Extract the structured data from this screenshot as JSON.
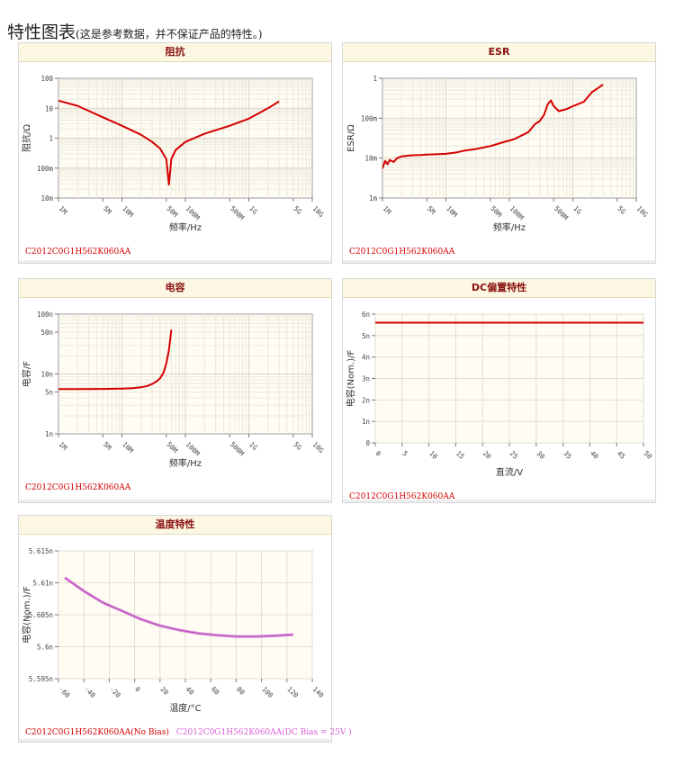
{
  "page": {
    "title": "特性图表",
    "subtitle": "(这是参考数据，并不保证产品的特性。)"
  },
  "chart_data": [
    {
      "id": "impedance",
      "type": "line",
      "title": "阻抗",
      "xlabel": "频率/Hz",
      "ylabel": "阻抗/Ω",
      "xscale": "log",
      "yscale": "log",
      "xlim": [
        1000000,
        10000000000
      ],
      "ylim": [
        0.01,
        100
      ],
      "x_tick_labels": [
        {
          "v": 1000000,
          "t": "1M"
        },
        {
          "v": 5000000,
          "t": "5M"
        },
        {
          "v": 10000000,
          "t": "10M"
        },
        {
          "v": 50000000,
          "t": "50M"
        },
        {
          "v": 100000000,
          "t": "100M"
        },
        {
          "v": 500000000,
          "t": "500M"
        },
        {
          "v": 1000000000,
          "t": "1G"
        },
        {
          "v": 5000000000,
          "t": "5G"
        },
        {
          "v": 10000000000,
          "t": "10G"
        }
      ],
      "y_tick_labels": [
        {
          "v": 0.01,
          "t": "10m"
        },
        {
          "v": 0.1,
          "t": "100m"
        },
        {
          "v": 1,
          "t": "1"
        },
        {
          "v": 10,
          "t": "10"
        },
        {
          "v": 100,
          "t": "100"
        }
      ],
      "grid": true,
      "legend": [
        "C2012C0G1H562K060AA"
      ],
      "series": [
        {
          "color": "#d40000",
          "x": [
            1000000,
            2000000,
            5000000,
            10000000,
            20000000,
            30000000,
            40000000,
            50000000,
            55000000,
            60000000,
            70000000,
            100000000,
            200000000,
            500000000,
            1000000000,
            2000000000,
            3000000000
          ],
          "y": [
            18,
            12,
            5,
            2.6,
            1.3,
            0.75,
            0.45,
            0.2,
            0.028,
            0.2,
            0.4,
            0.75,
            1.4,
            2.6,
            4.5,
            10,
            17
          ]
        }
      ]
    },
    {
      "id": "esr",
      "type": "line",
      "title": "ESR",
      "xlabel": "频率/Hz",
      "ylabel": "ESR/Ω",
      "xscale": "log",
      "yscale": "log",
      "xlim": [
        1000000,
        10000000000
      ],
      "ylim": [
        0.001,
        1
      ],
      "x_tick_labels": [
        {
          "v": 1000000,
          "t": "1M"
        },
        {
          "v": 5000000,
          "t": "5M"
        },
        {
          "v": 10000000,
          "t": "10M"
        },
        {
          "v": 50000000,
          "t": "50M"
        },
        {
          "v": 100000000,
          "t": "100M"
        },
        {
          "v": 500000000,
          "t": "500M"
        },
        {
          "v": 1000000000,
          "t": "1G"
        },
        {
          "v": 5000000000,
          "t": "5G"
        },
        {
          "v": 10000000000,
          "t": "10G"
        }
      ],
      "y_tick_labels": [
        {
          "v": 0.001,
          "t": "1m"
        },
        {
          "v": 0.01,
          "t": "10m"
        },
        {
          "v": 0.1,
          "t": "100m"
        },
        {
          "v": 1,
          "t": "1"
        }
      ],
      "grid": true,
      "legend": [
        "C2012C0G1H562K060AA"
      ],
      "series": [
        {
          "color": "#d40000",
          "x": [
            1000000,
            1100000,
            1200000,
            1300000,
            1500000,
            1700000,
            2000000,
            2500000,
            3000000,
            4000000,
            5000000,
            7000000,
            10000000,
            15000000,
            20000000,
            30000000,
            50000000,
            80000000,
            120000000,
            200000000,
            250000000,
            300000000,
            350000000,
            400000000,
            450000000,
            500000000,
            600000000,
            800000000,
            1000000000,
            1500000000,
            2000000000,
            3000000000
          ],
          "y": [
            0.0055,
            0.0085,
            0.007,
            0.009,
            0.008,
            0.01,
            0.011,
            0.0115,
            0.0118,
            0.012,
            0.0122,
            0.0125,
            0.0128,
            0.014,
            0.0155,
            0.017,
            0.02,
            0.025,
            0.03,
            0.045,
            0.07,
            0.085,
            0.12,
            0.22,
            0.28,
            0.2,
            0.15,
            0.17,
            0.2,
            0.26,
            0.45,
            0.7
          ]
        }
      ]
    },
    {
      "id": "capacitance",
      "type": "line",
      "title": "电容",
      "xlabel": "频率/Hz",
      "ylabel": "电容/F",
      "xscale": "log",
      "yscale": "log",
      "xlim": [
        1000000,
        10000000000
      ],
      "ylim": [
        1e-09,
        1e-07
      ],
      "x_tick_labels": [
        {
          "v": 1000000,
          "t": "1M"
        },
        {
          "v": 5000000,
          "t": "5M"
        },
        {
          "v": 10000000,
          "t": "10M"
        },
        {
          "v": 50000000,
          "t": "50M"
        },
        {
          "v": 100000000,
          "t": "100M"
        },
        {
          "v": 500000000,
          "t": "500M"
        },
        {
          "v": 1000000000,
          "t": "1G"
        },
        {
          "v": 5000000000,
          "t": "5G"
        },
        {
          "v": 10000000000,
          "t": "10G"
        }
      ],
      "y_tick_labels": [
        {
          "v": 1e-09,
          "t": "1n"
        },
        {
          "v": 5e-09,
          "t": "5n"
        },
        {
          "v": 1e-08,
          "t": "10n"
        },
        {
          "v": 5e-08,
          "t": "50n"
        },
        {
          "v": 1e-07,
          "t": "100n"
        }
      ],
      "grid": true,
      "legend": [
        "C2012C0G1H562K060AA"
      ],
      "series": [
        {
          "color": "#d40000",
          "x": [
            1000000,
            2000000,
            5000000,
            10000000,
            15000000,
            20000000,
            25000000,
            30000000,
            35000000,
            40000000,
            45000000,
            50000000,
            55000000,
            60000000
          ],
          "y": [
            5.6e-09,
            5.6e-09,
            5.62e-09,
            5.7e-09,
            5.8e-09,
            6e-09,
            6.3e-09,
            6.8e-09,
            7.5e-09,
            8.5e-09,
            1.05e-08,
            1.5e-08,
            2.5e-08,
            5.5e-08
          ]
        }
      ]
    },
    {
      "id": "dc-bias",
      "type": "line",
      "title": "DC偏置特性",
      "xlabel": "直流/V",
      "ylabel": "电容(Nom.)/F",
      "xscale": "linear",
      "yscale": "linear",
      "xlim": [
        0,
        50
      ],
      "ylim": [
        0,
        6e-09
      ],
      "x_tick_labels": [
        {
          "v": 0,
          "t": "0"
        },
        {
          "v": 5,
          "t": "5"
        },
        {
          "v": 10,
          "t": "10"
        },
        {
          "v": 15,
          "t": "15"
        },
        {
          "v": 20,
          "t": "20"
        },
        {
          "v": 25,
          "t": "25"
        },
        {
          "v": 30,
          "t": "30"
        },
        {
          "v": 35,
          "t": "35"
        },
        {
          "v": 40,
          "t": "40"
        },
        {
          "v": 45,
          "t": "45"
        },
        {
          "v": 50,
          "t": "50"
        }
      ],
      "y_tick_labels": [
        {
          "v": 0,
          "t": "0"
        },
        {
          "v": 1e-09,
          "t": "1n"
        },
        {
          "v": 2e-09,
          "t": "2n"
        },
        {
          "v": 3e-09,
          "t": "3n"
        },
        {
          "v": 4e-09,
          "t": "4n"
        },
        {
          "v": 5e-09,
          "t": "5n"
        },
        {
          "v": 6e-09,
          "t": "6n"
        }
      ],
      "grid": true,
      "legend": [
        "C2012C0G1H562K060AA"
      ],
      "series": [
        {
          "color": "#d40000",
          "x": [
            0,
            50
          ],
          "y": [
            5.6e-09,
            5.6e-09
          ]
        }
      ]
    },
    {
      "id": "temperature",
      "type": "line",
      "title": "温度特性",
      "xlabel": "温度/°C",
      "ylabel": "电容(Nom.)/F",
      "xscale": "linear",
      "yscale": "linear",
      "xlim": [
        -60,
        140
      ],
      "ylim": [
        5.595e-09,
        5.615e-09
      ],
      "x_tick_labels": [
        {
          "v": -60,
          "t": "-60"
        },
        {
          "v": -40,
          "t": "-40"
        },
        {
          "v": -20,
          "t": "-20"
        },
        {
          "v": 0,
          "t": "0"
        },
        {
          "v": 20,
          "t": "20"
        },
        {
          "v": 40,
          "t": "40"
        },
        {
          "v": 60,
          "t": "60"
        },
        {
          "v": 80,
          "t": "80"
        },
        {
          "v": 100,
          "t": "100"
        },
        {
          "v": 120,
          "t": "120"
        },
        {
          "v": 140,
          "t": "140"
        }
      ],
      "y_tick_labels": [
        {
          "v": 5.595e-09,
          "t": "5.595n"
        },
        {
          "v": 5.6e-09,
          "t": "5.6n"
        },
        {
          "v": 5.605e-09,
          "t": "5.605n"
        },
        {
          "v": 5.61e-09,
          "t": "5.61n"
        },
        {
          "v": 5.615e-09,
          "t": "5.615n"
        }
      ],
      "grid": true,
      "legend": [
        "C2012C0G1H562K060AA(No Bias)",
        "C2012C0G1H562K060AA(DC Bias = 25V )"
      ],
      "series": [
        {
          "color": "#dd8fdd",
          "width": 3.2,
          "x": [
            -55,
            -40,
            -25,
            -10,
            5,
            20,
            35,
            50,
            65,
            80,
            95,
            110,
            125
          ],
          "y": [
            5.6108e-09,
            5.6087e-09,
            5.6069e-09,
            5.6056e-09,
            5.6043e-09,
            5.6033e-09,
            5.6026e-09,
            5.6021e-09,
            5.6018e-09,
            5.6016e-09,
            5.6016e-09,
            5.6017e-09,
            5.6019e-09
          ]
        },
        {
          "color": "#b24ab2",
          "width": 1,
          "x": [
            -55,
            -40,
            -25,
            -10,
            5,
            20,
            35,
            50,
            65,
            80,
            95,
            110,
            125
          ],
          "y": [
            5.6108e-09,
            5.6087e-09,
            5.6069e-09,
            5.6056e-09,
            5.6043e-09,
            5.6033e-09,
            5.6026e-09,
            5.6021e-09,
            5.6018e-09,
            5.6016e-09,
            5.6016e-09,
            5.6017e-09,
            5.6019e-09
          ]
        }
      ]
    }
  ]
}
